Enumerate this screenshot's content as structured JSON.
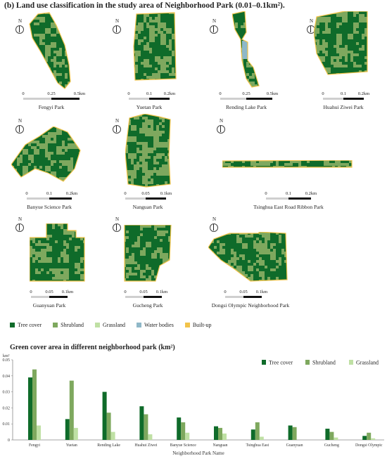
{
  "heading": "(b) Land use classification in the study area of Neighborhood Park (0.01–0.1km²).",
  "north_label": "N",
  "colors": {
    "tree": "#0f6b2a",
    "shrub": "#7ea85e",
    "grass": "#bfe0a4",
    "water": "#8fb8c8",
    "built": "#f2c34a"
  },
  "parks": [
    {
      "name": "Fengyi Park",
      "scale": [
        "0",
        "0.25",
        "0.5km"
      ]
    },
    {
      "name": "Yuetan Park",
      "scale": [
        "0",
        "0.1",
        "0.2km"
      ]
    },
    {
      "name": "Rending Lake Park",
      "scale": [
        "0",
        "0.25",
        "0.5km"
      ]
    },
    {
      "name": "Huahui Ziwei Park",
      "scale": [
        "0",
        "0.1",
        "0.2km"
      ]
    },
    {
      "name": "Banyue Science Park",
      "scale": [
        "0",
        "0.1",
        "0.2km"
      ]
    },
    {
      "name": "Nanguan Park",
      "scale": [
        "0",
        "0.05",
        "0.1km"
      ]
    },
    {
      "name": "Tsinghua East Road Ribbon Park",
      "scale": [
        "0",
        "0.1",
        "0.2km"
      ]
    },
    {
      "name": "Guanyuan Park",
      "scale": [
        "0",
        "0.05",
        "0.1km"
      ]
    },
    {
      "name": "Gucheng Park",
      "scale": [
        "0",
        "0.05",
        "0.1km"
      ]
    },
    {
      "name": "Dongsi Olympic Neighborhood Park",
      "scale": [
        "0",
        "0.05",
        "0.1km"
      ]
    }
  ],
  "legend": [
    {
      "label": "Tree cover",
      "color": "#0f6b2a"
    },
    {
      "label": "Shrubland",
      "color": "#7ea85e"
    },
    {
      "label": "Grassland",
      "color": "#bfe0a4"
    },
    {
      "label": "Water bodies",
      "color": "#8fb8c8"
    },
    {
      "label": "Built-up",
      "color": "#f2c34a"
    }
  ],
  "chart_data": {
    "type": "bar",
    "title": "Green cover area in different neighborhood park (km²)",
    "unit": "km²",
    "xlabel": "Neighborhood Park Name",
    "ylabel": "",
    "ylim": [
      0,
      0.05
    ],
    "yticks": [
      "0",
      "0.01",
      "0.02",
      "0.03",
      "0.04",
      "0.05"
    ],
    "legend_position": "top-right",
    "categories": [
      "Fengyi",
      "Yuetan",
      "Rending Lake",
      "Huahui Ziwei",
      "Banyue Science",
      "Nanguan",
      "Tsinghua East",
      "Guanyuan",
      "Gucheng",
      "Dongsi Olympic"
    ],
    "series": [
      {
        "name": "Tree cover",
        "color": "#0f6b2a",
        "values": [
          0.039,
          0.013,
          0.03,
          0.021,
          0.014,
          0.0085,
          0.0065,
          0.009,
          0.007,
          0.0025
        ]
      },
      {
        "name": "Shrubland",
        "color": "#7ea85e",
        "values": [
          0.044,
          0.037,
          0.017,
          0.016,
          0.011,
          0.0075,
          0.011,
          0.008,
          0.005,
          0.0045
        ]
      },
      {
        "name": "Grassland",
        "color": "#bfe0a4",
        "values": [
          0.009,
          0.0075,
          0.005,
          0.0035,
          0.0045,
          0.004,
          0.002,
          0.0,
          0.0015,
          0.001
        ]
      }
    ]
  }
}
